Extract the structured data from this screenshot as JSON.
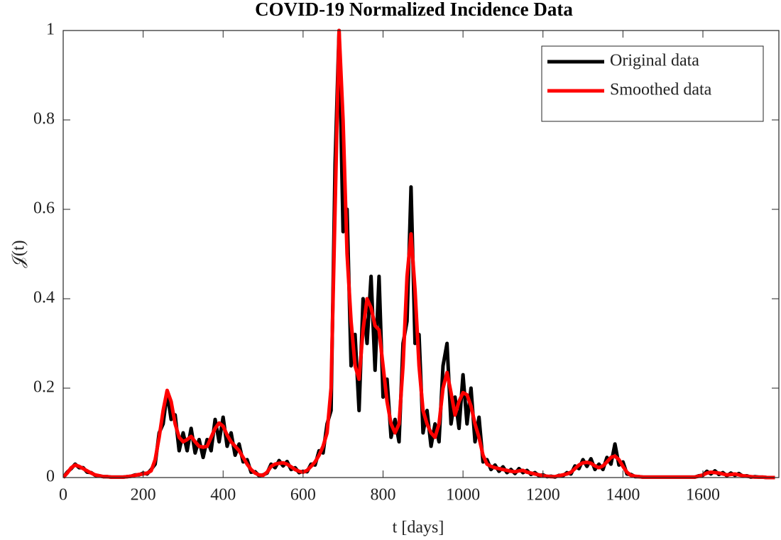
{
  "chart_data": {
    "type": "line",
    "title": "COVID-19 Normalized Incidence Data",
    "xlabel": "t [days]",
    "ylabel": "𝒥(t)",
    "xlim": [
      0,
      1790
    ],
    "ylim": [
      0,
      1
    ],
    "xticks": [
      0,
      200,
      400,
      600,
      800,
      1000,
      1200,
      1400,
      1600
    ],
    "yticks": [
      0,
      0.2,
      0.4,
      0.6,
      0.8,
      1
    ],
    "legend": "upper right",
    "grid": false,
    "x": [
      0,
      10,
      20,
      30,
      40,
      50,
      60,
      70,
      80,
      90,
      100,
      110,
      120,
      130,
      140,
      150,
      160,
      170,
      180,
      190,
      200,
      210,
      220,
      230,
      240,
      250,
      260,
      270,
      280,
      290,
      300,
      310,
      320,
      330,
      340,
      350,
      360,
      370,
      380,
      390,
      400,
      410,
      420,
      430,
      440,
      450,
      460,
      470,
      480,
      490,
      500,
      510,
      520,
      530,
      540,
      550,
      560,
      570,
      580,
      590,
      600,
      610,
      620,
      630,
      640,
      650,
      660,
      670,
      680,
      690,
      700,
      710,
      720,
      730,
      740,
      750,
      760,
      770,
      780,
      790,
      800,
      810,
      820,
      830,
      840,
      850,
      860,
      870,
      880,
      890,
      900,
      910,
      920,
      930,
      940,
      950,
      960,
      970,
      980,
      990,
      1000,
      1010,
      1020,
      1030,
      1040,
      1050,
      1060,
      1070,
      1080,
      1090,
      1100,
      1110,
      1120,
      1130,
      1140,
      1150,
      1160,
      1170,
      1180,
      1190,
      1200,
      1210,
      1220,
      1230,
      1240,
      1250,
      1260,
      1270,
      1280,
      1290,
      1300,
      1310,
      1320,
      1330,
      1340,
      1350,
      1360,
      1370,
      1380,
      1390,
      1400,
      1410,
      1420,
      1430,
      1440,
      1450,
      1460,
      1470,
      1480,
      1490,
      1500,
      1510,
      1520,
      1530,
      1540,
      1550,
      1560,
      1570,
      1580,
      1590,
      1600,
      1610,
      1620,
      1630,
      1640,
      1650,
      1660,
      1670,
      1680,
      1690,
      1700,
      1710,
      1720,
      1730,
      1740,
      1750,
      1760,
      1770,
      1780
    ],
    "series": [
      {
        "name": "Original data",
        "color": "#000000",
        "width": 5,
        "values": [
          0,
          0.012,
          0.02,
          0.03,
          0.022,
          0.022,
          0.012,
          0.011,
          0.005,
          0.004,
          0.002,
          0.002,
          0.001,
          0.001,
          0.001,
          0.001,
          0.002,
          0.003,
          0.006,
          0.006,
          0.01,
          0.008,
          0.018,
          0.03,
          0.1,
          0.12,
          0.19,
          0.13,
          0.14,
          0.06,
          0.1,
          0.06,
          0.11,
          0.055,
          0.085,
          0.045,
          0.085,
          0.06,
          0.13,
          0.08,
          0.135,
          0.07,
          0.1,
          0.05,
          0.075,
          0.035,
          0.04,
          0.012,
          0.013,
          0.004,
          0.006,
          0.01,
          0.03,
          0.022,
          0.038,
          0.026,
          0.036,
          0.018,
          0.022,
          0.011,
          0.014,
          0.013,
          0.03,
          0.028,
          0.06,
          0.055,
          0.12,
          0.15,
          0.7,
          1.0,
          0.55,
          0.6,
          0.25,
          0.32,
          0.15,
          0.4,
          0.3,
          0.45,
          0.24,
          0.45,
          0.18,
          0.22,
          0.09,
          0.13,
          0.08,
          0.3,
          0.35,
          0.65,
          0.3,
          0.32,
          0.1,
          0.15,
          0.07,
          0.12,
          0.08,
          0.25,
          0.3,
          0.12,
          0.18,
          0.11,
          0.23,
          0.12,
          0.2,
          0.08,
          0.135,
          0.035,
          0.04,
          0.018,
          0.028,
          0.014,
          0.024,
          0.011,
          0.018,
          0.009,
          0.02,
          0.011,
          0.016,
          0.007,
          0.011,
          0.004,
          0.006,
          0.002,
          0.003,
          0.001,
          0.005,
          0.004,
          0.011,
          0.008,
          0.026,
          0.02,
          0.04,
          0.025,
          0.042,
          0.018,
          0.03,
          0.018,
          0.045,
          0.03,
          0.075,
          0.028,
          0.035,
          0.008,
          0.007,
          0.002,
          0.002,
          0.001,
          0.001,
          0.001,
          0.001,
          0.001,
          0.001,
          0.001,
          0.001,
          0.001,
          0.001,
          0.001,
          0.001,
          0.001,
          0.001,
          0.004,
          0.005,
          0.014,
          0.008,
          0.015,
          0.007,
          0.011,
          0.004,
          0.01,
          0.005,
          0.009,
          0.003,
          0.004,
          0.001,
          0.002,
          0.001,
          0.001,
          0,
          0,
          0
        ]
      },
      {
        "name": "Smoothed data",
        "color": "#ff0000",
        "width": 5,
        "values": [
          0,
          0.01,
          0.022,
          0.028,
          0.025,
          0.02,
          0.015,
          0.01,
          0.006,
          0.004,
          0.002,
          0.002,
          0.001,
          0.001,
          0.001,
          0.001,
          0.002,
          0.003,
          0.005,
          0.007,
          0.008,
          0.01,
          0.015,
          0.04,
          0.09,
          0.15,
          0.195,
          0.17,
          0.12,
          0.09,
          0.08,
          0.085,
          0.092,
          0.08,
          0.07,
          0.068,
          0.07,
          0.09,
          0.11,
          0.122,
          0.115,
          0.095,
          0.08,
          0.07,
          0.06,
          0.045,
          0.03,
          0.018,
          0.01,
          0.006,
          0.005,
          0.012,
          0.025,
          0.03,
          0.032,
          0.033,
          0.03,
          0.024,
          0.018,
          0.014,
          0.012,
          0.016,
          0.025,
          0.035,
          0.05,
          0.07,
          0.1,
          0.2,
          0.6,
          1.0,
          0.8,
          0.5,
          0.35,
          0.25,
          0.22,
          0.33,
          0.4,
          0.38,
          0.34,
          0.33,
          0.25,
          0.17,
          0.12,
          0.1,
          0.12,
          0.25,
          0.45,
          0.545,
          0.42,
          0.25,
          0.15,
          0.12,
          0.1,
          0.09,
          0.12,
          0.2,
          0.235,
          0.19,
          0.14,
          0.17,
          0.19,
          0.185,
          0.16,
          0.12,
          0.09,
          0.05,
          0.03,
          0.025,
          0.022,
          0.02,
          0.018,
          0.016,
          0.014,
          0.013,
          0.015,
          0.016,
          0.012,
          0.01,
          0.008,
          0.006,
          0.004,
          0.003,
          0.002,
          0.002,
          0.004,
          0.006,
          0.008,
          0.012,
          0.02,
          0.028,
          0.033,
          0.034,
          0.032,
          0.026,
          0.022,
          0.026,
          0.035,
          0.045,
          0.048,
          0.04,
          0.025,
          0.012,
          0.005,
          0.003,
          0.002,
          0.001,
          0.001,
          0.001,
          0.001,
          0.001,
          0.001,
          0.001,
          0.001,
          0.001,
          0.001,
          0.001,
          0.001,
          0.001,
          0.001,
          0.003,
          0.006,
          0.01,
          0.012,
          0.011,
          0.01,
          0.008,
          0.006,
          0.007,
          0.008,
          0.006,
          0.004,
          0.003,
          0.002,
          0.001,
          0.001,
          0.001,
          0,
          0,
          0
        ]
      }
    ]
  }
}
